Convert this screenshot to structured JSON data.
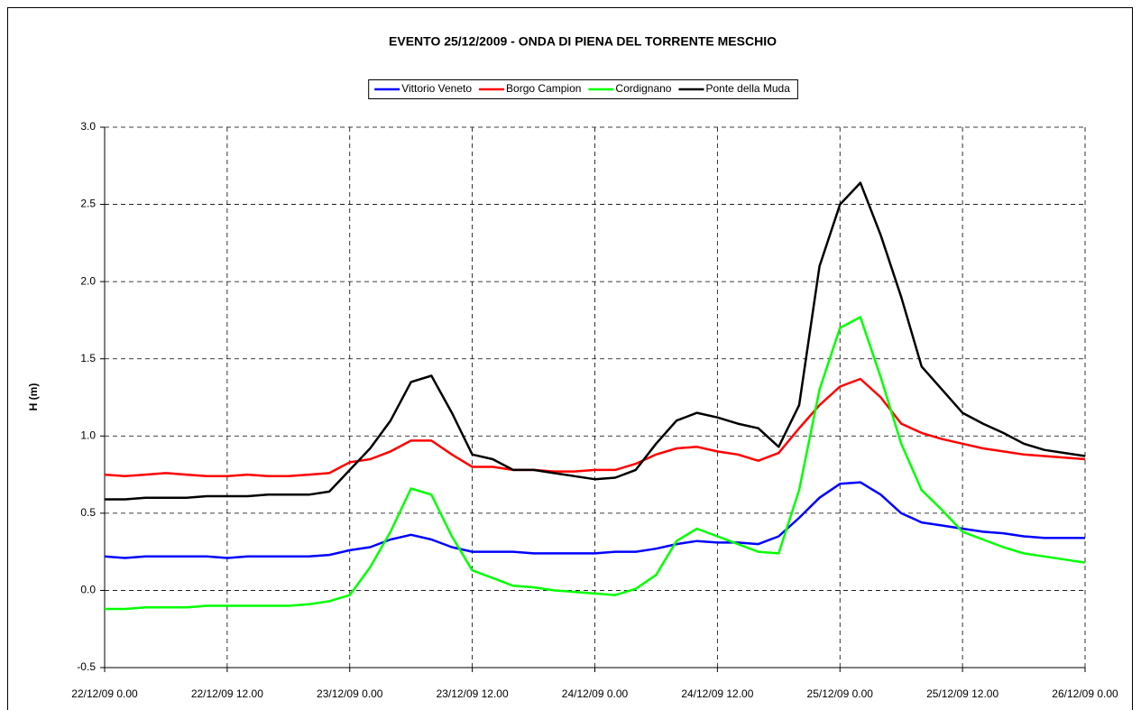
{
  "chart_data": {
    "type": "line",
    "title": "EVENTO 25/12/2009 - ONDA DI PIENA DEL TORRENTE MESCHIO",
    "y_label": "H (m)",
    "x": [
      "2009-12-22T00:00",
      "2009-12-22T02:00",
      "2009-12-22T04:00",
      "2009-12-22T06:00",
      "2009-12-22T08:00",
      "2009-12-22T10:00",
      "2009-12-22T12:00",
      "2009-12-22T14:00",
      "2009-12-22T16:00",
      "2009-12-22T18:00",
      "2009-12-22T20:00",
      "2009-12-22T22:00",
      "2009-12-23T00:00",
      "2009-12-23T02:00",
      "2009-12-23T04:00",
      "2009-12-23T06:00",
      "2009-12-23T08:00",
      "2009-12-23T10:00",
      "2009-12-23T12:00",
      "2009-12-23T14:00",
      "2009-12-23T16:00",
      "2009-12-23T18:00",
      "2009-12-23T20:00",
      "2009-12-23T22:00",
      "2009-12-24T00:00",
      "2009-12-24T02:00",
      "2009-12-24T04:00",
      "2009-12-24T06:00",
      "2009-12-24T08:00",
      "2009-12-24T10:00",
      "2009-12-24T12:00",
      "2009-12-24T14:00",
      "2009-12-24T16:00",
      "2009-12-24T18:00",
      "2009-12-24T20:00",
      "2009-12-24T22:00",
      "2009-12-25T00:00",
      "2009-12-25T02:00",
      "2009-12-25T04:00",
      "2009-12-25T06:00",
      "2009-12-25T08:00",
      "2009-12-25T10:00",
      "2009-12-25T12:00",
      "2009-12-25T14:00",
      "2009-12-25T16:00",
      "2009-12-25T18:00",
      "2009-12-25T20:00",
      "2009-12-25T22:00",
      "2009-12-26T00:00"
    ],
    "series": [
      {
        "name": "Vittorio Veneto",
        "color": "#0000ff",
        "values": [
          0.22,
          0.21,
          0.22,
          0.22,
          0.22,
          0.22,
          0.21,
          0.22,
          0.22,
          0.22,
          0.22,
          0.23,
          0.26,
          0.28,
          0.33,
          0.36,
          0.33,
          0.28,
          0.25,
          0.25,
          0.25,
          0.24,
          0.24,
          0.24,
          0.24,
          0.25,
          0.25,
          0.27,
          0.3,
          0.32,
          0.31,
          0.31,
          0.3,
          0.35,
          0.47,
          0.6,
          0.69,
          0.7,
          0.62,
          0.5,
          0.44,
          0.42,
          0.4,
          0.38,
          0.37,
          0.35,
          0.34,
          0.34,
          0.34
        ]
      },
      {
        "name": "Borgo Campion",
        "color": "#ff0000",
        "values": [
          0.75,
          0.74,
          0.75,
          0.76,
          0.75,
          0.74,
          0.74,
          0.75,
          0.74,
          0.74,
          0.75,
          0.76,
          0.83,
          0.85,
          0.9,
          0.97,
          0.97,
          0.88,
          0.8,
          0.8,
          0.78,
          0.78,
          0.77,
          0.77,
          0.78,
          0.78,
          0.82,
          0.88,
          0.92,
          0.93,
          0.9,
          0.88,
          0.84,
          0.89,
          1.05,
          1.2,
          1.32,
          1.37,
          1.25,
          1.08,
          1.02,
          0.98,
          0.95,
          0.92,
          0.9,
          0.88,
          0.87,
          0.86,
          0.85
        ]
      },
      {
        "name": "Cordignano",
        "color": "#00ff00",
        "values": [
          -0.12,
          -0.12,
          -0.11,
          -0.11,
          -0.11,
          -0.1,
          -0.1,
          -0.1,
          -0.1,
          -0.1,
          -0.09,
          -0.07,
          -0.03,
          0.15,
          0.38,
          0.66,
          0.62,
          0.35,
          0.13,
          0.08,
          0.03,
          0.02,
          0.0,
          -0.01,
          -0.02,
          -0.03,
          0.01,
          0.1,
          0.32,
          0.4,
          0.35,
          0.3,
          0.25,
          0.24,
          0.65,
          1.3,
          1.7,
          1.77,
          1.38,
          0.95,
          0.65,
          0.52,
          0.38,
          0.33,
          0.28,
          0.24,
          0.22,
          0.2,
          0.18
        ]
      },
      {
        "name": "Ponte della Muda",
        "color": "#000000",
        "values": [
          0.59,
          0.59,
          0.6,
          0.6,
          0.6,
          0.61,
          0.61,
          0.61,
          0.62,
          0.62,
          0.62,
          0.64,
          0.78,
          0.92,
          1.1,
          1.35,
          1.39,
          1.15,
          0.88,
          0.85,
          0.78,
          0.78,
          0.76,
          0.74,
          0.72,
          0.73,
          0.78,
          0.95,
          1.1,
          1.15,
          1.12,
          1.08,
          1.05,
          0.93,
          1.2,
          2.1,
          2.5,
          2.64,
          2.3,
          1.9,
          1.45,
          1.3,
          1.15,
          1.08,
          1.02,
          0.95,
          0.91,
          0.89,
          0.87
        ]
      }
    ],
    "xlim": [
      "2009-12-22T00:00",
      "2009-12-26T00:00"
    ],
    "xticks": [
      {
        "value": "2009-12-22T00:00",
        "label": "22/12/09 0.00"
      },
      {
        "value": "2009-12-22T12:00",
        "label": "22/12/09 12.00"
      },
      {
        "value": "2009-12-23T00:00",
        "label": "23/12/09 0.00"
      },
      {
        "value": "2009-12-23T12:00",
        "label": "23/12/09 12.00"
      },
      {
        "value": "2009-12-24T00:00",
        "label": "24/12/09 0.00"
      },
      {
        "value": "2009-12-24T12:00",
        "label": "24/12/09 12.00"
      },
      {
        "value": "2009-12-25T00:00",
        "label": "25/12/09 0.00"
      },
      {
        "value": "2009-12-25T12:00",
        "label": "25/12/09 12.00"
      },
      {
        "value": "2009-12-26T00:00",
        "label": "26/12/09 0.00"
      }
    ],
    "ylim": [
      -0.5,
      3.0
    ],
    "yticks": [
      {
        "value": -0.5,
        "label": "-0.5"
      },
      {
        "value": 0,
        "label": "0.0"
      },
      {
        "value": 0.5,
        "label": "0.5"
      },
      {
        "value": 1,
        "label": "1.0"
      },
      {
        "value": 1.5,
        "label": "1.5"
      },
      {
        "value": 2,
        "label": "2.0"
      },
      {
        "value": 2.5,
        "label": "2.5"
      },
      {
        "value": 3,
        "label": "3.0"
      }
    ],
    "grid": true,
    "legend": "top"
  }
}
